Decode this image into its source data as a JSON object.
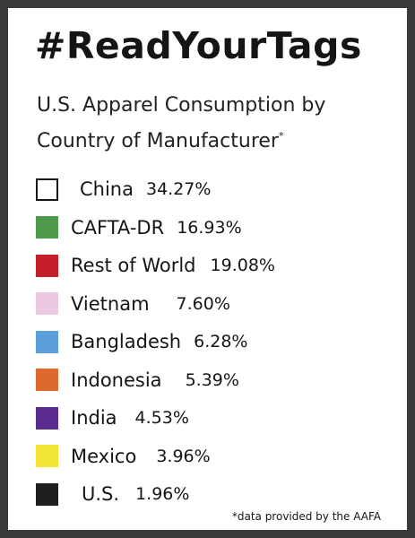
{
  "chart_data": {
    "type": "legend",
    "title": "#ReadYourTags",
    "subtitle": "U.S. Apparel Consumption by Country of Manufacturer",
    "subtitle_mark": "*",
    "unit": "%",
    "categories": [
      "China",
      "CAFTA-DR",
      "Rest of World",
      "Vietnam",
      "Bangladesh",
      "Indonesia",
      "India",
      "Mexico",
      "U.S."
    ],
    "values": [
      34.27,
      16.93,
      19.08,
      7.6,
      6.28,
      5.39,
      4.53,
      3.96,
      1.96
    ],
    "value_labels": [
      "34.27%",
      "16.93%",
      "19.08%",
      "7.60%",
      "6.28%",
      "5.39%",
      "4.53%",
      "3.96%",
      "1.96%"
    ],
    "colors": [
      "#ffffff",
      "#4e9a4c",
      "#c51f2a",
      "#ecc8e3",
      "#5b9fdb",
      "#dd6a2c",
      "#5a2b8e",
      "#f3e636",
      "#1f1f1f"
    ],
    "outlined": [
      true,
      false,
      false,
      false,
      false,
      false,
      false,
      false,
      false
    ],
    "footnote": "*data provided by the AAFA"
  }
}
